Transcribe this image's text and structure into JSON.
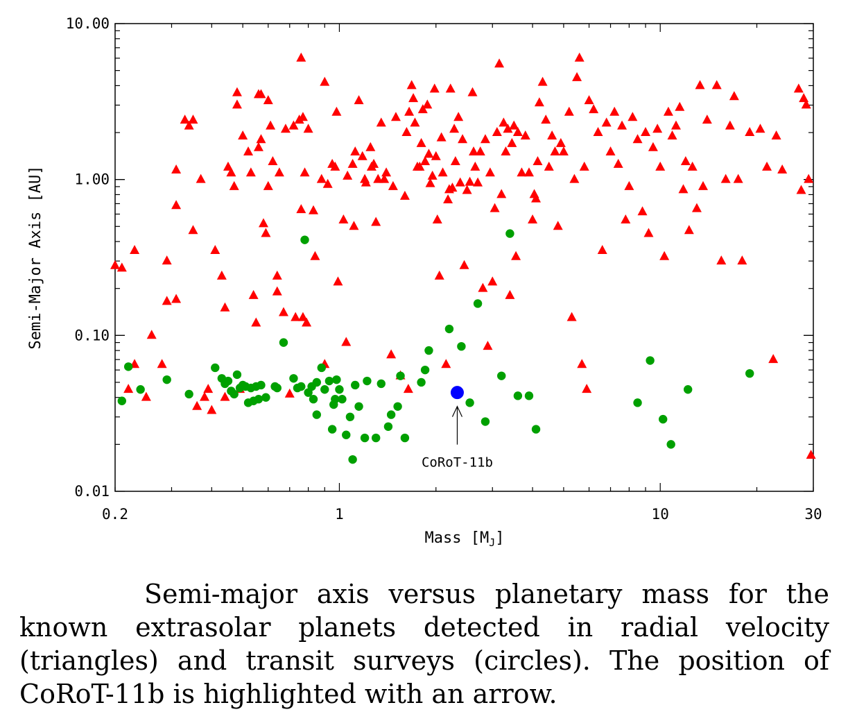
{
  "chart_data": {
    "type": "scatter",
    "title": "",
    "xlabel": "Mass [M",
    "xlabel_sub": "J",
    "xlabel_end": "]",
    "ylabel": "Semi-Major Axis [AU]",
    "x_scale": "log",
    "y_scale": "log",
    "xlim": [
      0.2,
      30
    ],
    "ylim": [
      0.01,
      10
    ],
    "x_ticks": [
      {
        "value": 0.2,
        "label": "0.2"
      },
      {
        "value": 1,
        "label": "1"
      },
      {
        "value": 10,
        "label": "10"
      },
      {
        "value": 30,
        "label": "30"
      }
    ],
    "y_ticks": [
      {
        "value": 0.01,
        "label": "0.01"
      },
      {
        "value": 0.1,
        "label": "0.10"
      },
      {
        "value": 1,
        "label": "1.00"
      },
      {
        "value": 10,
        "label": "10.00"
      }
    ],
    "grid": false,
    "colors": {
      "radial_velocity": "#ff0000",
      "transit": "#00a000",
      "highlight": "#0000ff"
    },
    "series": [
      {
        "marker": "triangle",
        "color": "#ff0000",
        "points": [
          [
            0.2,
            0.28
          ],
          [
            0.21,
            0.27
          ],
          [
            0.22,
            0.045
          ],
          [
            0.23,
            0.065
          ],
          [
            0.23,
            0.35
          ],
          [
            0.25,
            0.04
          ],
          [
            0.26,
            0.1
          ],
          [
            0.28,
            0.065
          ],
          [
            0.29,
            0.165
          ],
          [
            0.29,
            0.3
          ],
          [
            0.31,
            1.15
          ],
          [
            0.31,
            0.68
          ],
          [
            0.31,
            0.17
          ],
          [
            0.33,
            2.4
          ],
          [
            0.34,
            2.2
          ],
          [
            0.35,
            0.47
          ],
          [
            0.35,
            2.4
          ],
          [
            0.36,
            0.035
          ],
          [
            0.37,
            1.0
          ],
          [
            0.38,
            0.04
          ],
          [
            0.39,
            0.045
          ],
          [
            0.4,
            0.033
          ],
          [
            0.41,
            0.35
          ],
          [
            0.43,
            0.24
          ],
          [
            0.44,
            0.15
          ],
          [
            0.44,
            0.04
          ],
          [
            0.45,
            1.2
          ],
          [
            0.46,
            1.1
          ],
          [
            0.47,
            0.9
          ],
          [
            0.48,
            3.0
          ],
          [
            0.48,
            3.6
          ],
          [
            0.49,
            0.045
          ],
          [
            0.5,
            1.9
          ],
          [
            0.52,
            1.5
          ],
          [
            0.53,
            1.1
          ],
          [
            0.54,
            0.18
          ],
          [
            0.55,
            0.12
          ],
          [
            0.56,
            1.6
          ],
          [
            0.56,
            3.5
          ],
          [
            0.57,
            1.8
          ],
          [
            0.57,
            3.5
          ],
          [
            0.58,
            0.52
          ],
          [
            0.59,
            0.45
          ],
          [
            0.6,
            0.9
          ],
          [
            0.6,
            3.2
          ],
          [
            0.61,
            2.2
          ],
          [
            0.62,
            1.3
          ],
          [
            0.64,
            0.19
          ],
          [
            0.64,
            0.24
          ],
          [
            0.65,
            1.1
          ],
          [
            0.67,
            0.14
          ],
          [
            0.68,
            2.1
          ],
          [
            0.7,
            0.042
          ],
          [
            0.72,
            2.2
          ],
          [
            0.73,
            0.13
          ],
          [
            0.75,
            2.4
          ],
          [
            0.76,
            6.0
          ],
          [
            0.76,
            0.64
          ],
          [
            0.77,
            0.13
          ],
          [
            0.77,
            2.5
          ],
          [
            0.78,
            1.1
          ],
          [
            0.79,
            0.12
          ],
          [
            0.8,
            2.1
          ],
          [
            0.83,
            0.63
          ],
          [
            0.84,
            0.32
          ],
          [
            0.88,
            1.0
          ],
          [
            0.9,
            4.2
          ],
          [
            0.9,
            0.065
          ],
          [
            0.92,
            0.93
          ],
          [
            0.95,
            1.25
          ],
          [
            0.97,
            1.2
          ],
          [
            0.98,
            2.7
          ],
          [
            0.99,
            0.22
          ],
          [
            1.03,
            0.55
          ],
          [
            1.05,
            0.09
          ],
          [
            1.06,
            1.05
          ],
          [
            1.1,
            1.25
          ],
          [
            1.11,
            0.5
          ],
          [
            1.12,
            1.5
          ],
          [
            1.15,
            3.2
          ],
          [
            1.18,
            1.4
          ],
          [
            1.2,
            1.0
          ],
          [
            1.21,
            0.95
          ],
          [
            1.25,
            1.6
          ],
          [
            1.26,
            1.2
          ],
          [
            1.28,
            1.25
          ],
          [
            1.3,
            0.53
          ],
          [
            1.32,
            1.0
          ],
          [
            1.35,
            2.3
          ],
          [
            1.38,
            1.0
          ],
          [
            1.4,
            1.1
          ],
          [
            1.45,
            0.075
          ],
          [
            1.47,
            0.9
          ],
          [
            1.5,
            2.5
          ],
          [
            1.55,
            0.055
          ],
          [
            1.6,
            0.78
          ],
          [
            1.62,
            2.0
          ],
          [
            1.64,
            0.045
          ],
          [
            1.65,
            2.7
          ],
          [
            1.68,
            4.0
          ],
          [
            1.7,
            3.3
          ],
          [
            1.72,
            2.3
          ],
          [
            1.75,
            1.2
          ],
          [
            1.78,
            1.2
          ],
          [
            1.8,
            1.7
          ],
          [
            1.82,
            2.8
          ],
          [
            1.85,
            1.3
          ],
          [
            1.88,
            3.0
          ],
          [
            1.9,
            1.45
          ],
          [
            1.92,
            0.94
          ],
          [
            1.95,
            1.05
          ],
          [
            1.98,
            3.8
          ],
          [
            2.0,
            1.4
          ],
          [
            2.02,
            0.55
          ],
          [
            2.05,
            0.24
          ],
          [
            2.08,
            1.85
          ],
          [
            2.1,
            1.1
          ],
          [
            2.15,
            0.065
          ],
          [
            2.18,
            0.74
          ],
          [
            2.2,
            0.86
          ],
          [
            2.22,
            3.8
          ],
          [
            2.25,
            0.88
          ],
          [
            2.28,
            2.1
          ],
          [
            2.3,
            1.3
          ],
          [
            2.35,
            2.5
          ],
          [
            2.38,
            0.95
          ],
          [
            2.42,
            1.8
          ],
          [
            2.45,
            0.28
          ],
          [
            2.5,
            0.85
          ],
          [
            2.55,
            0.96
          ],
          [
            2.6,
            3.6
          ],
          [
            2.62,
            1.5
          ],
          [
            2.65,
            1.2
          ],
          [
            2.7,
            0.95
          ],
          [
            2.75,
            1.5
          ],
          [
            2.8,
            0.2
          ],
          [
            2.85,
            1.8
          ],
          [
            2.9,
            0.085
          ],
          [
            2.95,
            1.1
          ],
          [
            3.0,
            0.22
          ],
          [
            3.05,
            0.65
          ],
          [
            3.1,
            2.0
          ],
          [
            3.15,
            5.5
          ],
          [
            3.2,
            0.8
          ],
          [
            3.25,
            2.3
          ],
          [
            3.3,
            1.5
          ],
          [
            3.35,
            2.1
          ],
          [
            3.4,
            0.18
          ],
          [
            3.45,
            1.7
          ],
          [
            3.5,
            2.2
          ],
          [
            3.55,
            0.32
          ],
          [
            3.6,
            2.0
          ],
          [
            3.7,
            1.1
          ],
          [
            3.8,
            1.9
          ],
          [
            3.9,
            1.1
          ],
          [
            4.0,
            0.55
          ],
          [
            4.05,
            0.8
          ],
          [
            4.1,
            0.75
          ],
          [
            4.15,
            1.3
          ],
          [
            4.2,
            3.1
          ],
          [
            4.3,
            4.2
          ],
          [
            4.4,
            2.4
          ],
          [
            4.5,
            1.2
          ],
          [
            4.6,
            1.9
          ],
          [
            4.7,
            1.5
          ],
          [
            4.8,
            0.5
          ],
          [
            4.9,
            1.7
          ],
          [
            5.0,
            1.5
          ],
          [
            5.2,
            2.7
          ],
          [
            5.3,
            0.13
          ],
          [
            5.4,
            1.0
          ],
          [
            5.5,
            4.5
          ],
          [
            5.6,
            6.0
          ],
          [
            5.7,
            0.065
          ],
          [
            5.8,
            1.2
          ],
          [
            5.9,
            0.045
          ],
          [
            6.0,
            3.2
          ],
          [
            6.2,
            2.8
          ],
          [
            6.4,
            2.0
          ],
          [
            6.6,
            0.35
          ],
          [
            6.8,
            2.3
          ],
          [
            7.0,
            1.5
          ],
          [
            7.2,
            2.7
          ],
          [
            7.4,
            1.25
          ],
          [
            7.6,
            2.2
          ],
          [
            7.8,
            0.55
          ],
          [
            8.0,
            0.9
          ],
          [
            8.2,
            2.5
          ],
          [
            8.5,
            1.8
          ],
          [
            8.8,
            0.62
          ],
          [
            9.0,
            2.0
          ],
          [
            9.2,
            0.45
          ],
          [
            9.5,
            1.6
          ],
          [
            9.8,
            2.1
          ],
          [
            10.0,
            1.2
          ],
          [
            10.3,
            0.32
          ],
          [
            10.6,
            2.7
          ],
          [
            10.9,
            1.9
          ],
          [
            11.2,
            2.2
          ],
          [
            11.5,
            2.9
          ],
          [
            11.8,
            0.86
          ],
          [
            12.0,
            1.3
          ],
          [
            12.3,
            0.47
          ],
          [
            12.6,
            1.2
          ],
          [
            13.0,
            0.65
          ],
          [
            13.3,
            4.0
          ],
          [
            13.6,
            0.9
          ],
          [
            14.0,
            2.4
          ],
          [
            15.0,
            4.0
          ],
          [
            15.5,
            0.3
          ],
          [
            16.0,
            1.0
          ],
          [
            16.5,
            2.2
          ],
          [
            17.0,
            3.4
          ],
          [
            17.5,
            1.0
          ],
          [
            18.0,
            0.3
          ],
          [
            19.0,
            2.0
          ],
          [
            20.5,
            2.1
          ],
          [
            21.5,
            1.2
          ],
          [
            22.5,
            0.07
          ],
          [
            23.0,
            1.9
          ],
          [
            24.0,
            1.15
          ],
          [
            27.0,
            3.8
          ],
          [
            27.5,
            0.85
          ],
          [
            28.0,
            3.3
          ],
          [
            28.5,
            3.0
          ],
          [
            29.0,
            1.0
          ],
          [
            29.5,
            0.017
          ]
        ]
      },
      {
        "marker": "circle",
        "color": "#00a000",
        "points": [
          [
            0.21,
            0.038
          ],
          [
            0.22,
            0.063
          ],
          [
            0.24,
            0.045
          ],
          [
            0.29,
            0.052
          ],
          [
            0.34,
            0.042
          ],
          [
            0.41,
            0.062
          ],
          [
            0.43,
            0.053
          ],
          [
            0.44,
            0.049
          ],
          [
            0.45,
            0.051
          ],
          [
            0.46,
            0.044
          ],
          [
            0.47,
            0.042
          ],
          [
            0.48,
            0.056
          ],
          [
            0.49,
            0.046
          ],
          [
            0.5,
            0.048
          ],
          [
            0.51,
            0.047
          ],
          [
            0.52,
            0.037
          ],
          [
            0.53,
            0.046
          ],
          [
            0.54,
            0.038
          ],
          [
            0.55,
            0.047
          ],
          [
            0.56,
            0.039
          ],
          [
            0.57,
            0.048
          ],
          [
            0.59,
            0.04
          ],
          [
            0.63,
            0.047
          ],
          [
            0.64,
            0.046
          ],
          [
            0.67,
            0.09
          ],
          [
            0.72,
            0.053
          ],
          [
            0.74,
            0.046
          ],
          [
            0.76,
            0.047
          ],
          [
            0.78,
            0.41
          ],
          [
            0.8,
            0.043
          ],
          [
            0.82,
            0.047
          ],
          [
            0.83,
            0.039
          ],
          [
            0.85,
            0.031
          ],
          [
            0.85,
            0.05
          ],
          [
            0.88,
            0.062
          ],
          [
            0.9,
            0.045
          ],
          [
            0.93,
            0.051
          ],
          [
            0.95,
            0.025
          ],
          [
            0.96,
            0.036
          ],
          [
            0.97,
            0.039
          ],
          [
            0.98,
            0.052
          ],
          [
            1.0,
            0.045
          ],
          [
            1.02,
            0.039
          ],
          [
            1.05,
            0.023
          ],
          [
            1.08,
            0.03
          ],
          [
            1.1,
            0.016
          ],
          [
            1.12,
            0.048
          ],
          [
            1.15,
            0.035
          ],
          [
            1.2,
            0.022
          ],
          [
            1.22,
            0.051
          ],
          [
            1.3,
            0.022
          ],
          [
            1.35,
            0.049
          ],
          [
            1.42,
            0.026
          ],
          [
            1.45,
            0.031
          ],
          [
            1.52,
            0.035
          ],
          [
            1.55,
            0.055
          ],
          [
            1.6,
            0.022
          ],
          [
            1.8,
            0.05
          ],
          [
            1.85,
            0.06
          ],
          [
            1.9,
            0.08
          ],
          [
            2.2,
            0.11
          ],
          [
            2.4,
            0.085
          ],
          [
            2.55,
            0.037
          ],
          [
            2.7,
            0.16
          ],
          [
            2.85,
            0.028
          ],
          [
            3.2,
            0.055
          ],
          [
            3.4,
            0.45
          ],
          [
            3.6,
            0.041
          ],
          [
            3.9,
            0.041
          ],
          [
            4.1,
            0.025
          ],
          [
            8.5,
            0.037
          ],
          [
            9.3,
            0.069
          ],
          [
            10.2,
            0.029
          ],
          [
            10.8,
            0.02
          ],
          [
            12.2,
            0.045
          ],
          [
            19.0,
            0.057
          ]
        ]
      },
      {
        "marker": "circle",
        "color": "#0000ff",
        "points": [
          [
            2.33,
            0.043
          ]
        ]
      }
    ],
    "annotations": [
      {
        "text": "CoRoT-11b",
        "x": 2.33,
        "y": 0.043
      }
    ]
  },
  "caption": "Semi-major axis versus planetary mass for the known extrasolar planets detected in radial velocity (triangles) and transit surveys (circles). The position of CoRoT-11b is highlighted with an arrow."
}
